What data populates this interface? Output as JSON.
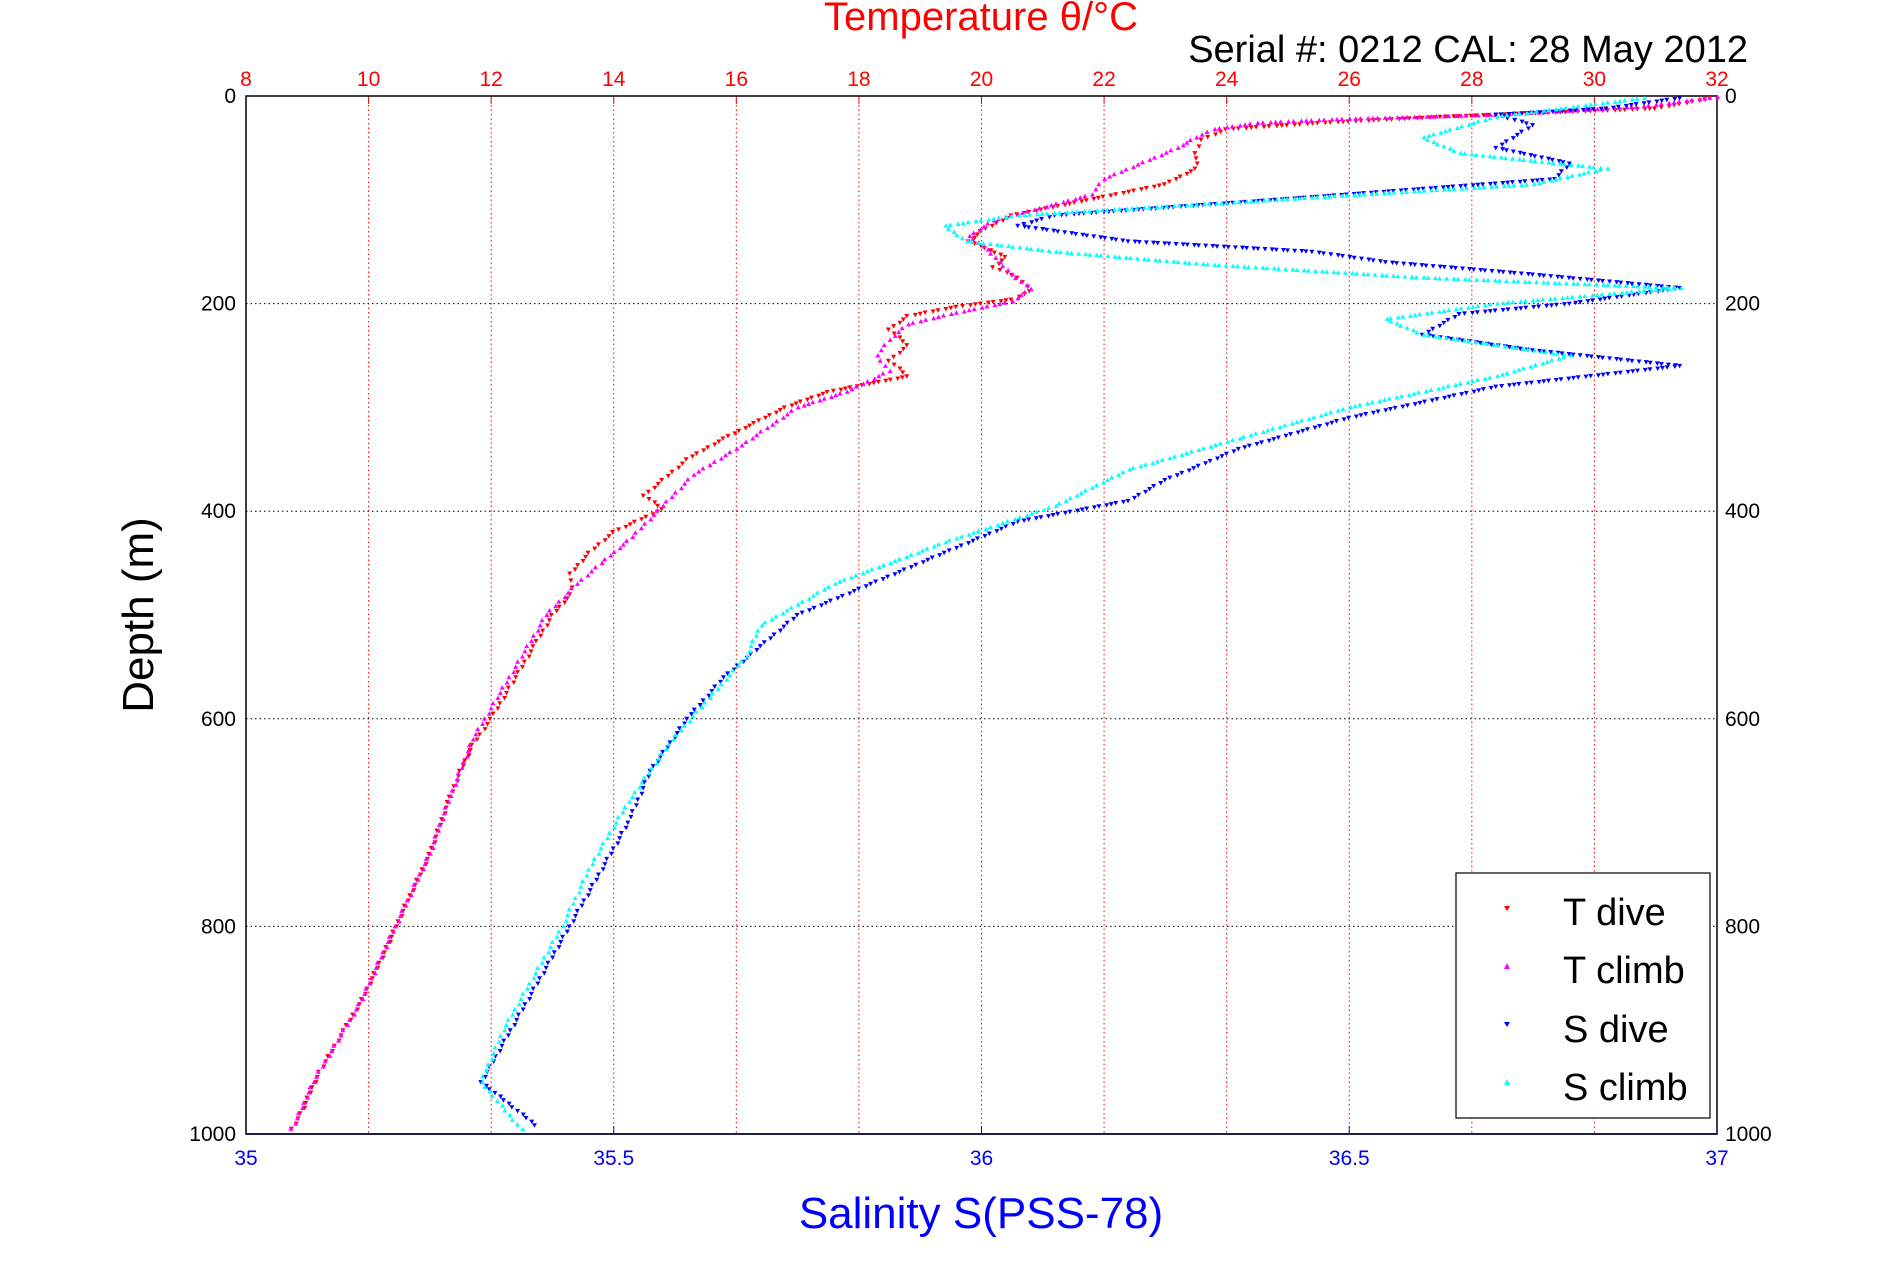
{
  "chart_data": {
    "type": "scatter",
    "title": "Temperature θ/°C",
    "subtitle": "Serial #: 0212  CAL: 28 May 2012",
    "ylabel": "Depth (m)",
    "xlabel_bottom": "Salinity S(PSS-78)",
    "xlabel_top": "Temperature θ/°C",
    "y_reversed": true,
    "ylim": [
      0,
      1000
    ],
    "yticks": [
      0,
      200,
      400,
      600,
      800,
      1000
    ],
    "x_bottom": {
      "lim": [
        35,
        37
      ],
      "ticks": [
        "35",
        "35.5",
        "36",
        "36.5",
        "37"
      ]
    },
    "x_top": {
      "lim": [
        8,
        32
      ],
      "ticks": [
        "8",
        "10",
        "12",
        "14",
        "16",
        "18",
        "20",
        "22",
        "24",
        "26",
        "28",
        "30",
        "32"
      ]
    },
    "grid": true,
    "legend_position": "bottom-right",
    "colors": {
      "title": "#ff0000",
      "salinity_axis": "#0000ff",
      "t_dive": "#ff0000",
      "t_climb": "#ff00ff",
      "s_dive": "#0000ff",
      "s_climb": "#00ffff"
    },
    "series": [
      {
        "name": "T dive",
        "axis": "temperature",
        "marker": "triangle-down",
        "points": [
          [
            31.9,
            2
          ],
          [
            31.0,
            12
          ],
          [
            27.5,
            20
          ],
          [
            25.5,
            26
          ],
          [
            24.0,
            32
          ],
          [
            23.6,
            42
          ],
          [
            23.5,
            55
          ],
          [
            23.5,
            70
          ],
          [
            23.0,
            85
          ],
          [
            22.0,
            97
          ],
          [
            20.5,
            115
          ],
          [
            20.0,
            130
          ],
          [
            19.8,
            140
          ],
          [
            20.4,
            155
          ],
          [
            20.2,
            165
          ],
          [
            20.6,
            175
          ],
          [
            20.8,
            188
          ],
          [
            20.5,
            196
          ],
          [
            19.6,
            203
          ],
          [
            18.8,
            212
          ],
          [
            18.5,
            225
          ],
          [
            18.8,
            240
          ],
          [
            18.5,
            255
          ],
          [
            18.8,
            270
          ],
          [
            17.5,
            285
          ],
          [
            16.8,
            300
          ],
          [
            16.3,
            315
          ],
          [
            15.8,
            330
          ],
          [
            15.2,
            350
          ],
          [
            14.8,
            370
          ],
          [
            14.5,
            385
          ],
          [
            14.8,
            398
          ],
          [
            14.0,
            420
          ],
          [
            13.6,
            440
          ],
          [
            13.3,
            460
          ],
          [
            13.3,
            480
          ],
          [
            13.0,
            500
          ],
          [
            12.7,
            530
          ],
          [
            12.3,
            570
          ],
          [
            12.0,
            600
          ],
          [
            11.7,
            625
          ],
          [
            11.5,
            650
          ],
          [
            11.3,
            680
          ],
          [
            11.0,
            730
          ],
          [
            10.6,
            780
          ],
          [
            10.3,
            820
          ],
          [
            9.9,
            870
          ],
          [
            9.6,
            900
          ],
          [
            9.2,
            940
          ],
          [
            8.9,
            980
          ],
          [
            8.7,
            1000
          ]
        ]
      },
      {
        "name": "T climb",
        "axis": "temperature",
        "marker": "triangle-up",
        "points": [
          [
            32.0,
            1
          ],
          [
            30.8,
            10
          ],
          [
            28.5,
            18
          ],
          [
            26.0,
            22
          ],
          [
            24.5,
            26
          ],
          [
            23.8,
            32
          ],
          [
            23.5,
            40
          ],
          [
            23.2,
            50
          ],
          [
            22.0,
            80
          ],
          [
            21.8,
            95
          ],
          [
            20.2,
            120
          ],
          [
            19.8,
            135
          ],
          [
            20.1,
            148
          ],
          [
            20.3,
            160
          ],
          [
            20.5,
            172
          ],
          [
            20.8,
            186
          ],
          [
            20.5,
            198
          ],
          [
            19.5,
            210
          ],
          [
            18.8,
            220
          ],
          [
            18.5,
            235
          ],
          [
            18.3,
            250
          ],
          [
            18.5,
            265
          ],
          [
            17.8,
            285
          ],
          [
            17.0,
            300
          ],
          [
            16.5,
            320
          ],
          [
            16.0,
            340
          ],
          [
            15.3,
            365
          ],
          [
            14.8,
            395
          ],
          [
            14.3,
            425
          ],
          [
            13.8,
            450
          ],
          [
            13.4,
            470
          ],
          [
            12.9,
            500
          ],
          [
            12.5,
            540
          ],
          [
            12.1,
            580
          ],
          [
            11.7,
            620
          ],
          [
            11.3,
            680
          ],
          [
            11.0,
            730
          ],
          [
            10.6,
            780
          ],
          [
            10.2,
            830
          ],
          [
            9.9,
            870
          ],
          [
            9.5,
            910
          ],
          [
            9.1,
            950
          ],
          [
            8.8,
            990
          ],
          [
            8.7,
            1000
          ]
        ]
      },
      {
        "name": "S dive",
        "axis": "salinity",
        "marker": "triangle-down",
        "points": [
          [
            36.95,
            2
          ],
          [
            36.85,
            12
          ],
          [
            36.7,
            18
          ],
          [
            36.75,
            28
          ],
          [
            36.7,
            50
          ],
          [
            36.8,
            65
          ],
          [
            36.78,
            80
          ],
          [
            36.4,
            100
          ],
          [
            36.1,
            115
          ],
          [
            36.05,
            125
          ],
          [
            36.2,
            140
          ],
          [
            36.45,
            150
          ],
          [
            36.55,
            160
          ],
          [
            36.75,
            172
          ],
          [
            36.95,
            185
          ],
          [
            36.8,
            200
          ],
          [
            36.65,
            210
          ],
          [
            36.6,
            230
          ],
          [
            36.75,
            245
          ],
          [
            36.95,
            260
          ],
          [
            36.7,
            280
          ],
          [
            36.5,
            310
          ],
          [
            36.35,
            340
          ],
          [
            36.25,
            370
          ],
          [
            36.2,
            390
          ],
          [
            36.05,
            410
          ],
          [
            35.95,
            440
          ],
          [
            35.85,
            470
          ],
          [
            35.75,
            500
          ],
          [
            35.7,
            530
          ],
          [
            35.65,
            560
          ],
          [
            35.6,
            600
          ],
          [
            35.55,
            650
          ],
          [
            35.52,
            700
          ],
          [
            35.48,
            750
          ],
          [
            35.44,
            800
          ],
          [
            35.4,
            850
          ],
          [
            35.36,
            900
          ],
          [
            35.32,
            950
          ],
          [
            35.4,
            995
          ]
        ]
      },
      {
        "name": "S climb",
        "axis": "salinity",
        "marker": "triangle-up",
        "points": [
          [
            36.9,
            2
          ],
          [
            36.7,
            20
          ],
          [
            36.6,
            40
          ],
          [
            36.65,
            55
          ],
          [
            36.85,
            70
          ],
          [
            36.75,
            85
          ],
          [
            36.4,
            100
          ],
          [
            36.05,
            115
          ],
          [
            35.95,
            125
          ],
          [
            35.98,
            140
          ],
          [
            36.1,
            150
          ],
          [
            36.3,
            162
          ],
          [
            36.6,
            175
          ],
          [
            36.95,
            185
          ],
          [
            36.7,
            200
          ],
          [
            36.55,
            215
          ],
          [
            36.6,
            230
          ],
          [
            36.8,
            250
          ],
          [
            36.7,
            270
          ],
          [
            36.5,
            300
          ],
          [
            36.35,
            330
          ],
          [
            36.2,
            360
          ],
          [
            36.1,
            395
          ],
          [
            35.95,
            430
          ],
          [
            35.8,
            470
          ],
          [
            35.7,
            510
          ],
          [
            35.68,
            540
          ],
          [
            35.63,
            580
          ],
          [
            35.58,
            620
          ],
          [
            35.52,
            680
          ],
          [
            35.47,
            740
          ],
          [
            35.43,
            800
          ],
          [
            35.39,
            850
          ],
          [
            35.35,
            900
          ],
          [
            35.32,
            950
          ],
          [
            35.38,
            1000
          ]
        ]
      }
    ]
  }
}
